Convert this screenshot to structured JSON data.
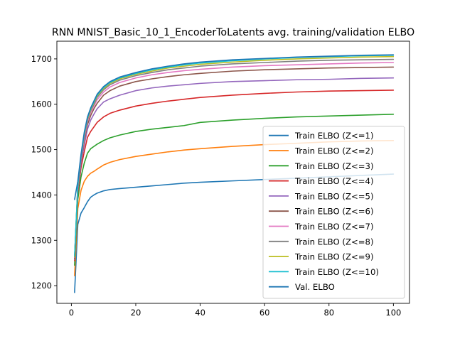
{
  "chart_data": {
    "type": "line",
    "title": "RNN MNIST_Basic_10_1_EncoderToLatents avg. training/validation ELBO",
    "xlabel": "",
    "ylabel": "",
    "xlim": [
      -4.5,
      105
    ],
    "ylim": [
      1161,
      1739
    ],
    "xticks": [
      0,
      20,
      40,
      60,
      80,
      100
    ],
    "yticks": [
      1200,
      1300,
      1400,
      1500,
      1600,
      1700
    ],
    "grid": false,
    "legend_position": "lower right",
    "x": [
      1,
      2,
      3,
      4,
      5,
      6,
      7,
      8,
      10,
      12,
      15,
      20,
      25,
      30,
      35,
      40,
      50,
      60,
      70,
      80,
      90,
      100
    ],
    "series": [
      {
        "name": "Train ELBO (Z<=1)",
        "color": "#1f77b4",
        "values": [
          1185,
          1335,
          1360,
          1372,
          1385,
          1395,
          1400,
          1404,
          1409,
          1412,
          1414,
          1417,
          1420,
          1423,
          1426,
          1428,
          1431,
          1434,
          1437,
          1440,
          1443,
          1446
        ]
      },
      {
        "name": "Train ELBO (Z<=2)",
        "color": "#ff7f0e",
        "values": [
          1222,
          1370,
          1410,
          1430,
          1441,
          1448,
          1452,
          1457,
          1466,
          1472,
          1478,
          1485,
          1490,
          1495,
          1499,
          1502,
          1507,
          1511,
          1514,
          1517,
          1519,
          1520
        ]
      },
      {
        "name": "Train ELBO (Z<=3)",
        "color": "#2ca02c",
        "values": [
          1245,
          1390,
          1440,
          1470,
          1492,
          1502,
          1507,
          1512,
          1520,
          1526,
          1532,
          1540,
          1545,
          1549,
          1553,
          1560,
          1565,
          1569,
          1572,
          1574,
          1576,
          1578
        ]
      },
      {
        "name": "Train ELBO (Z<=4)",
        "color": "#d62728",
        "values": [
          1255,
          1405,
          1460,
          1495,
          1527,
          1540,
          1550,
          1560,
          1572,
          1580,
          1587,
          1596,
          1602,
          1607,
          1611,
          1615,
          1620,
          1624,
          1627,
          1629,
          1630,
          1631
        ]
      },
      {
        "name": "Train ELBO (Z<=5)",
        "color": "#9467bd",
        "values": [
          1258,
          1410,
          1470,
          1510,
          1545,
          1565,
          1578,
          1590,
          1605,
          1612,
          1620,
          1630,
          1636,
          1640,
          1643,
          1646,
          1650,
          1652,
          1654,
          1655,
          1657,
          1658
        ]
      },
      {
        "name": "Train ELBO (Z<=6)",
        "color": "#8c564b",
        "values": [
          1260,
          1415,
          1475,
          1520,
          1555,
          1575,
          1590,
          1602,
          1620,
          1630,
          1640,
          1650,
          1656,
          1661,
          1665,
          1668,
          1673,
          1676,
          1678,
          1680,
          1681,
          1682
        ]
      },
      {
        "name": "Train ELBO (Z<=7)",
        "color": "#e377c2",
        "values": [
          1262,
          1418,
          1480,
          1525,
          1562,
          1582,
          1596,
          1610,
          1627,
          1638,
          1648,
          1658,
          1665,
          1670,
          1674,
          1677,
          1682,
          1685,
          1687,
          1689,
          1691,
          1692
        ]
      },
      {
        "name": "Train ELBO (Z<=8)",
        "color": "#7f7f7f",
        "values": [
          1263,
          1420,
          1483,
          1530,
          1566,
          1586,
          1600,
          1615,
          1632,
          1643,
          1653,
          1663,
          1670,
          1676,
          1680,
          1684,
          1689,
          1692,
          1695,
          1697,
          1698,
          1699
        ]
      },
      {
        "name": "Train ELBO (Z<=9)",
        "color": "#bcbd22",
        "values": [
          1264,
          1421,
          1485,
          1532,
          1568,
          1588,
          1603,
          1618,
          1635,
          1646,
          1656,
          1666,
          1673,
          1680,
          1684,
          1688,
          1693,
          1697,
          1700,
          1702,
          1704,
          1705
        ]
      },
      {
        "name": "Train ELBO (Z<=10)",
        "color": "#17becf",
        "values": [
          1265,
          1422,
          1486,
          1534,
          1570,
          1590,
          1605,
          1620,
          1637,
          1648,
          1658,
          1668,
          1676,
          1682,
          1687,
          1691,
          1696,
          1700,
          1703,
          1705,
          1707,
          1708
        ]
      },
      {
        "name": "Val. ELBO",
        "color": "#1f77b4",
        "values": [
          1390,
          1430,
          1490,
          1538,
          1572,
          1592,
          1607,
          1622,
          1639,
          1650,
          1660,
          1670,
          1678,
          1684,
          1689,
          1693,
          1698,
          1701,
          1704,
          1706,
          1708,
          1709
        ]
      }
    ]
  }
}
